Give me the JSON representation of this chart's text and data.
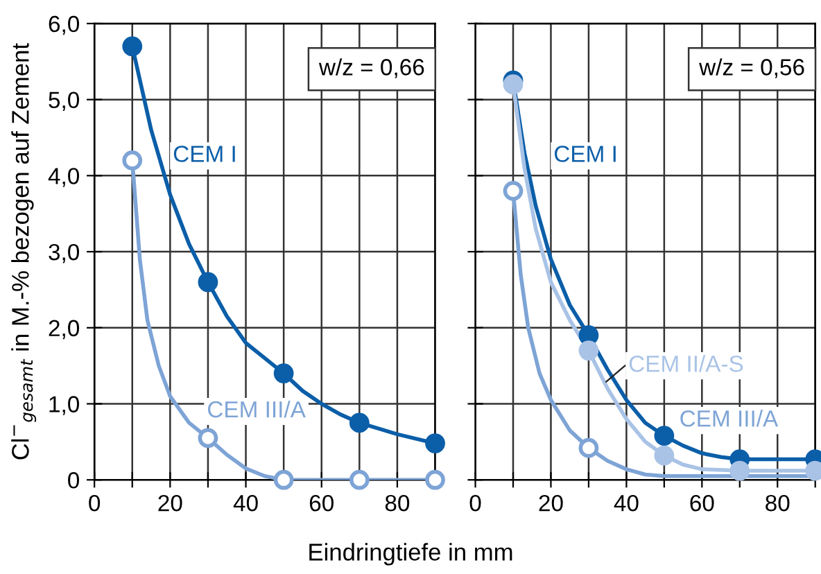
{
  "chart_data": [
    {
      "type": "line",
      "ylabel": "Cl$^{−}$$_{gesamt}$ in M.-% bezogen auf Zement",
      "xlabel": "Eindringtiefe in mm",
      "annotations": [
        "w/z = 0,66"
      ],
      "xlim": [
        0,
        90
      ],
      "xticks": [
        0,
        {
          "value": 10,
          "label": null
        },
        20,
        {
          "value": 30,
          "label": null
        },
        40,
        {
          "value": 50,
          "label": null
        },
        60,
        {
          "value": 70,
          "label": null
        },
        80,
        {
          "value": 90,
          "label": null
        }
      ],
      "ylim": [
        0,
        6
      ],
      "yticks": [
        {
          "value": 0,
          "label": "0"
        },
        {
          "value": 1,
          "label": "1,0"
        },
        {
          "value": 2,
          "label": "2,0"
        },
        {
          "value": 3,
          "label": "3,0"
        },
        {
          "value": 4,
          "label": "4,0"
        },
        {
          "value": 5,
          "label": "5,0"
        },
        {
          "value": 6,
          "label": "6,0"
        }
      ],
      "grid": true,
      "series": [
        {
          "name": "CEM I",
          "color": "#0b5ea8",
          "x": [
            10,
            15,
            20,
            25,
            30,
            35,
            40,
            45,
            50,
            55,
            60,
            65,
            70,
            80,
            90
          ],
          "values": [
            5.7,
            4.6,
            3.75,
            3.1,
            2.6,
            2.15,
            1.8,
            1.6,
            1.4,
            1.17,
            1.0,
            0.86,
            0.75,
            0.6,
            0.48
          ]
        },
        {
          "name": "CEM III/A",
          "color": "#7ea4d6",
          "x": [
            10,
            12,
            14,
            17,
            20,
            25,
            30,
            35,
            40,
            45,
            50,
            90
          ],
          "values": [
            4.2,
            2.9,
            2.1,
            1.5,
            1.1,
            0.75,
            0.55,
            0.33,
            0.15,
            0.05,
            0,
            0
          ]
        },
        {
          "type": "scatter",
          "marker": "circle",
          "color": "#0b5ea8",
          "x": [
            10,
            30,
            50,
            70,
            90
          ],
          "values": [
            5.7,
            2.6,
            1.4,
            0.75,
            0.48
          ]
        },
        {
          "type": "scatter",
          "marker": "circle",
          "color": "#7ea4d6",
          "x": [
            10,
            30,
            50,
            70,
            90
          ],
          "values": [
            4.2,
            0.55,
            0,
            0,
            0
          ]
        }
      ]
    },
    {
      "type": "line",
      "annotations": [
        "w/z = 0,56"
      ],
      "xlim": [
        0,
        90
      ],
      "tick_labels": "x",
      "xticks": [
        0,
        {
          "value": 10,
          "label": null
        },
        20,
        {
          "value": 30,
          "label": null
        },
        40,
        {
          "value": 50,
          "label": null
        },
        60,
        {
          "value": 70,
          "label": null
        },
        80,
        {
          "value": 90,
          "label": null
        }
      ],
      "ylim": [
        0,
        6
      ],
      "yticks": [
        {
          "value": 0,
          "label": null
        },
        {
          "value": 1,
          "label": null
        },
        {
          "value": 2,
          "label": null
        },
        {
          "value": 3,
          "label": null
        },
        {
          "value": 4,
          "label": null
        },
        {
          "value": 5,
          "label": null
        },
        {
          "value": 6,
          "label": null
        }
      ],
      "grid": true,
      "series": [
        {
          "name": "CEM I",
          "color": "#0b5ea8",
          "x": [
            10,
            13,
            16,
            20,
            25,
            30,
            35,
            40,
            45,
            50,
            55,
            60,
            65,
            70,
            90
          ],
          "values": [
            5.25,
            4.3,
            3.6,
            2.9,
            2.3,
            1.9,
            1.45,
            1.05,
            0.75,
            0.58,
            0.45,
            0.35,
            0.3,
            0.27,
            0.27
          ]
        },
        {
          "name": "CEM II/A-S",
          "color": "#a9c3e6",
          "x": [
            10,
            13,
            16,
            20,
            25,
            30,
            35,
            40,
            45,
            50,
            55,
            60,
            70,
            90
          ],
          "values": [
            5.2,
            4.1,
            3.3,
            2.6,
            2.1,
            1.7,
            1.2,
            0.8,
            0.5,
            0.32,
            0.2,
            0.14,
            0.12,
            0.12
          ]
        },
        {
          "name": "CEM III/A",
          "color": "#7ea4d6",
          "x": [
            10,
            12,
            14,
            17,
            20,
            25,
            30,
            35,
            40,
            45,
            50,
            90
          ],
          "values": [
            3.8,
            2.7,
            2.0,
            1.4,
            1.05,
            0.65,
            0.42,
            0.25,
            0.14,
            0.07,
            0.05,
            0.05
          ]
        },
        {
          "type": "scatter",
          "marker": "circle",
          "color": "#0b5ea8",
          "x": [
            10,
            30,
            50,
            70,
            90
          ],
          "values": [
            5.25,
            1.9,
            0.58,
            0.27,
            0.27
          ]
        },
        {
          "type": "scatter",
          "marker": "circle",
          "color": "#a9c3e6",
          "x": [
            10,
            30,
            50,
            70,
            90
          ],
          "values": [
            5.2,
            1.7,
            0.32,
            0.12,
            0.12
          ]
        },
        {
          "type": "scatter",
          "marker": "circle",
          "color": "#7ea4d6",
          "x": [
            10,
            30
          ],
          "values": [
            3.8,
            0.42
          ]
        }
      ]
    }
  ]
}
